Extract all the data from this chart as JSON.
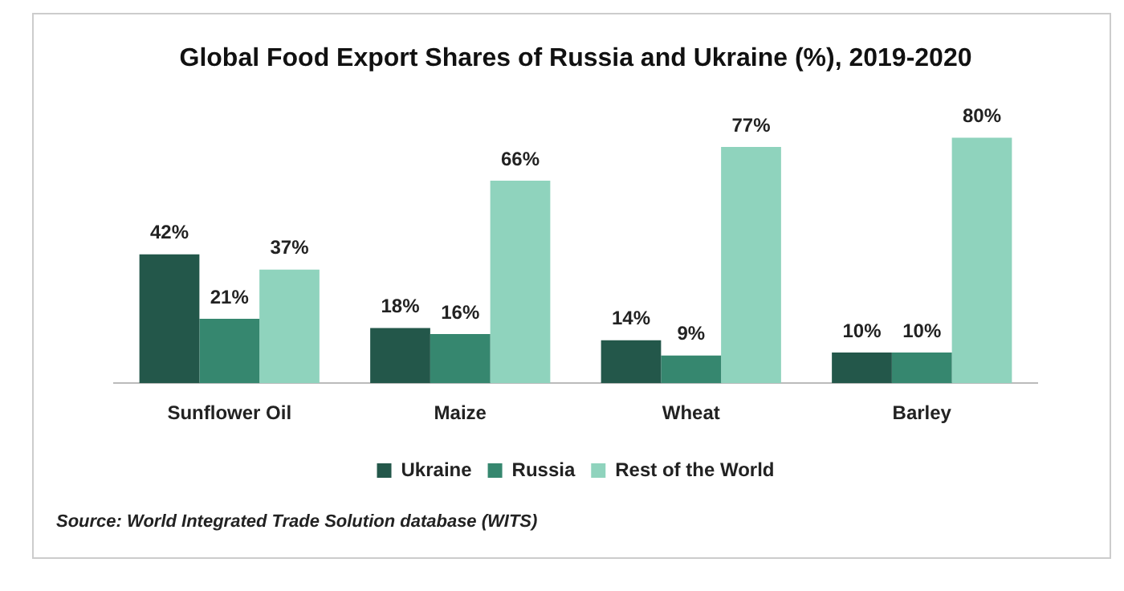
{
  "chart_data": {
    "type": "bar",
    "title": "Global Food Export Shares of Russia and Ukraine (%), 2019-2020",
    "categories": [
      "Sunflower Oil",
      "Maize",
      "Wheat",
      "Barley"
    ],
    "series": [
      {
        "name": "Ukraine",
        "color": "#23574a",
        "values": [
          42,
          18,
          14,
          10
        ],
        "value_labels": [
          "42%",
          "18%",
          "14%",
          "10%"
        ]
      },
      {
        "name": "Russia",
        "color": "#36876f",
        "values": [
          21,
          16,
          9,
          10
        ],
        "value_labels": [
          "21%",
          "16%",
          "9%",
          "10%"
        ]
      },
      {
        "name": "Rest of the World",
        "color": "#8fd3bd",
        "values": [
          37,
          66,
          77,
          80
        ],
        "value_labels": [
          "37%",
          "66%",
          "77%",
          "80%"
        ]
      }
    ],
    "legend": "bottom",
    "grid": false,
    "tick_labels": "x",
    "annotations": [
      "Source: World Integrated Trade Solution database (WITS)"
    ]
  }
}
